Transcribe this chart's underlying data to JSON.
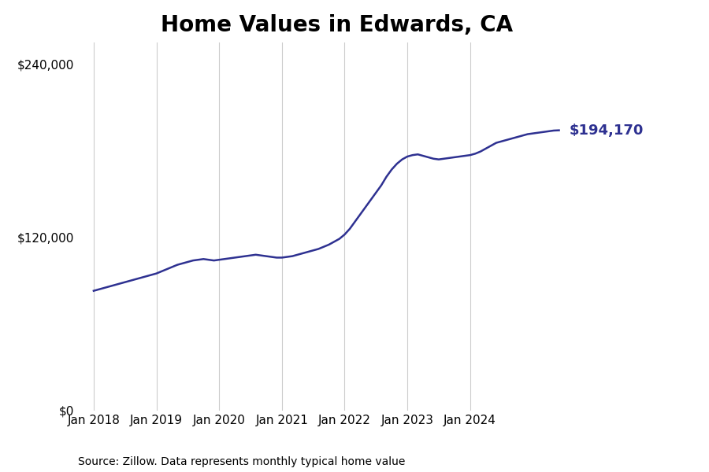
{
  "title": "Home Values in Edwards, CA",
  "line_color": "#2E3191",
  "annotation_color": "#2E3191",
  "annotation_text": "$194,170",
  "final_value": 194170,
  "source_text": "Source: Zillow. Data represents monthly typical home value",
  "ytick_labels": [
    "$0",
    "$120,000",
    "$240,000"
  ],
  "ytick_values": [
    0,
    120000,
    240000
  ],
  "ylim": [
    0,
    255000
  ],
  "xtick_labels": [
    "Jan 2018",
    "Jan 2019",
    "Jan 2020",
    "Jan 2021",
    "Jan 2022",
    "Jan 2023",
    "Jan 2024"
  ],
  "background_color": "#ffffff",
  "grid_color": "#cccccc",
  "title_fontsize": 20,
  "tick_fontsize": 11,
  "annotation_fontsize": 13,
  "source_fontsize": 10,
  "monthly_values": [
    83000,
    84000,
    85000,
    86000,
    87000,
    88000,
    89000,
    90000,
    91000,
    92000,
    93000,
    94000,
    95000,
    96500,
    98000,
    99500,
    101000,
    102000,
    103000,
    104000,
    104500,
    105000,
    104500,
    104000,
    104500,
    105000,
    105500,
    106000,
    106500,
    107000,
    107500,
    108000,
    107500,
    107000,
    106500,
    106000,
    106000,
    106500,
    107000,
    108000,
    109000,
    110000,
    111000,
    112000,
    113500,
    115000,
    117000,
    119000,
    122000,
    126000,
    131000,
    136000,
    141000,
    146000,
    151000,
    156000,
    162000,
    167000,
    171000,
    174000,
    176000,
    177000,
    177500,
    176500,
    175500,
    174500,
    174000,
    174500,
    175000,
    175500,
    176000,
    176500,
    177000,
    178000,
    179500,
    181500,
    183500,
    185500,
    186500,
    187500,
    188500,
    189500,
    190500,
    191500,
    192000,
    192500,
    193000,
    193500,
    194000,
    194170
  ]
}
